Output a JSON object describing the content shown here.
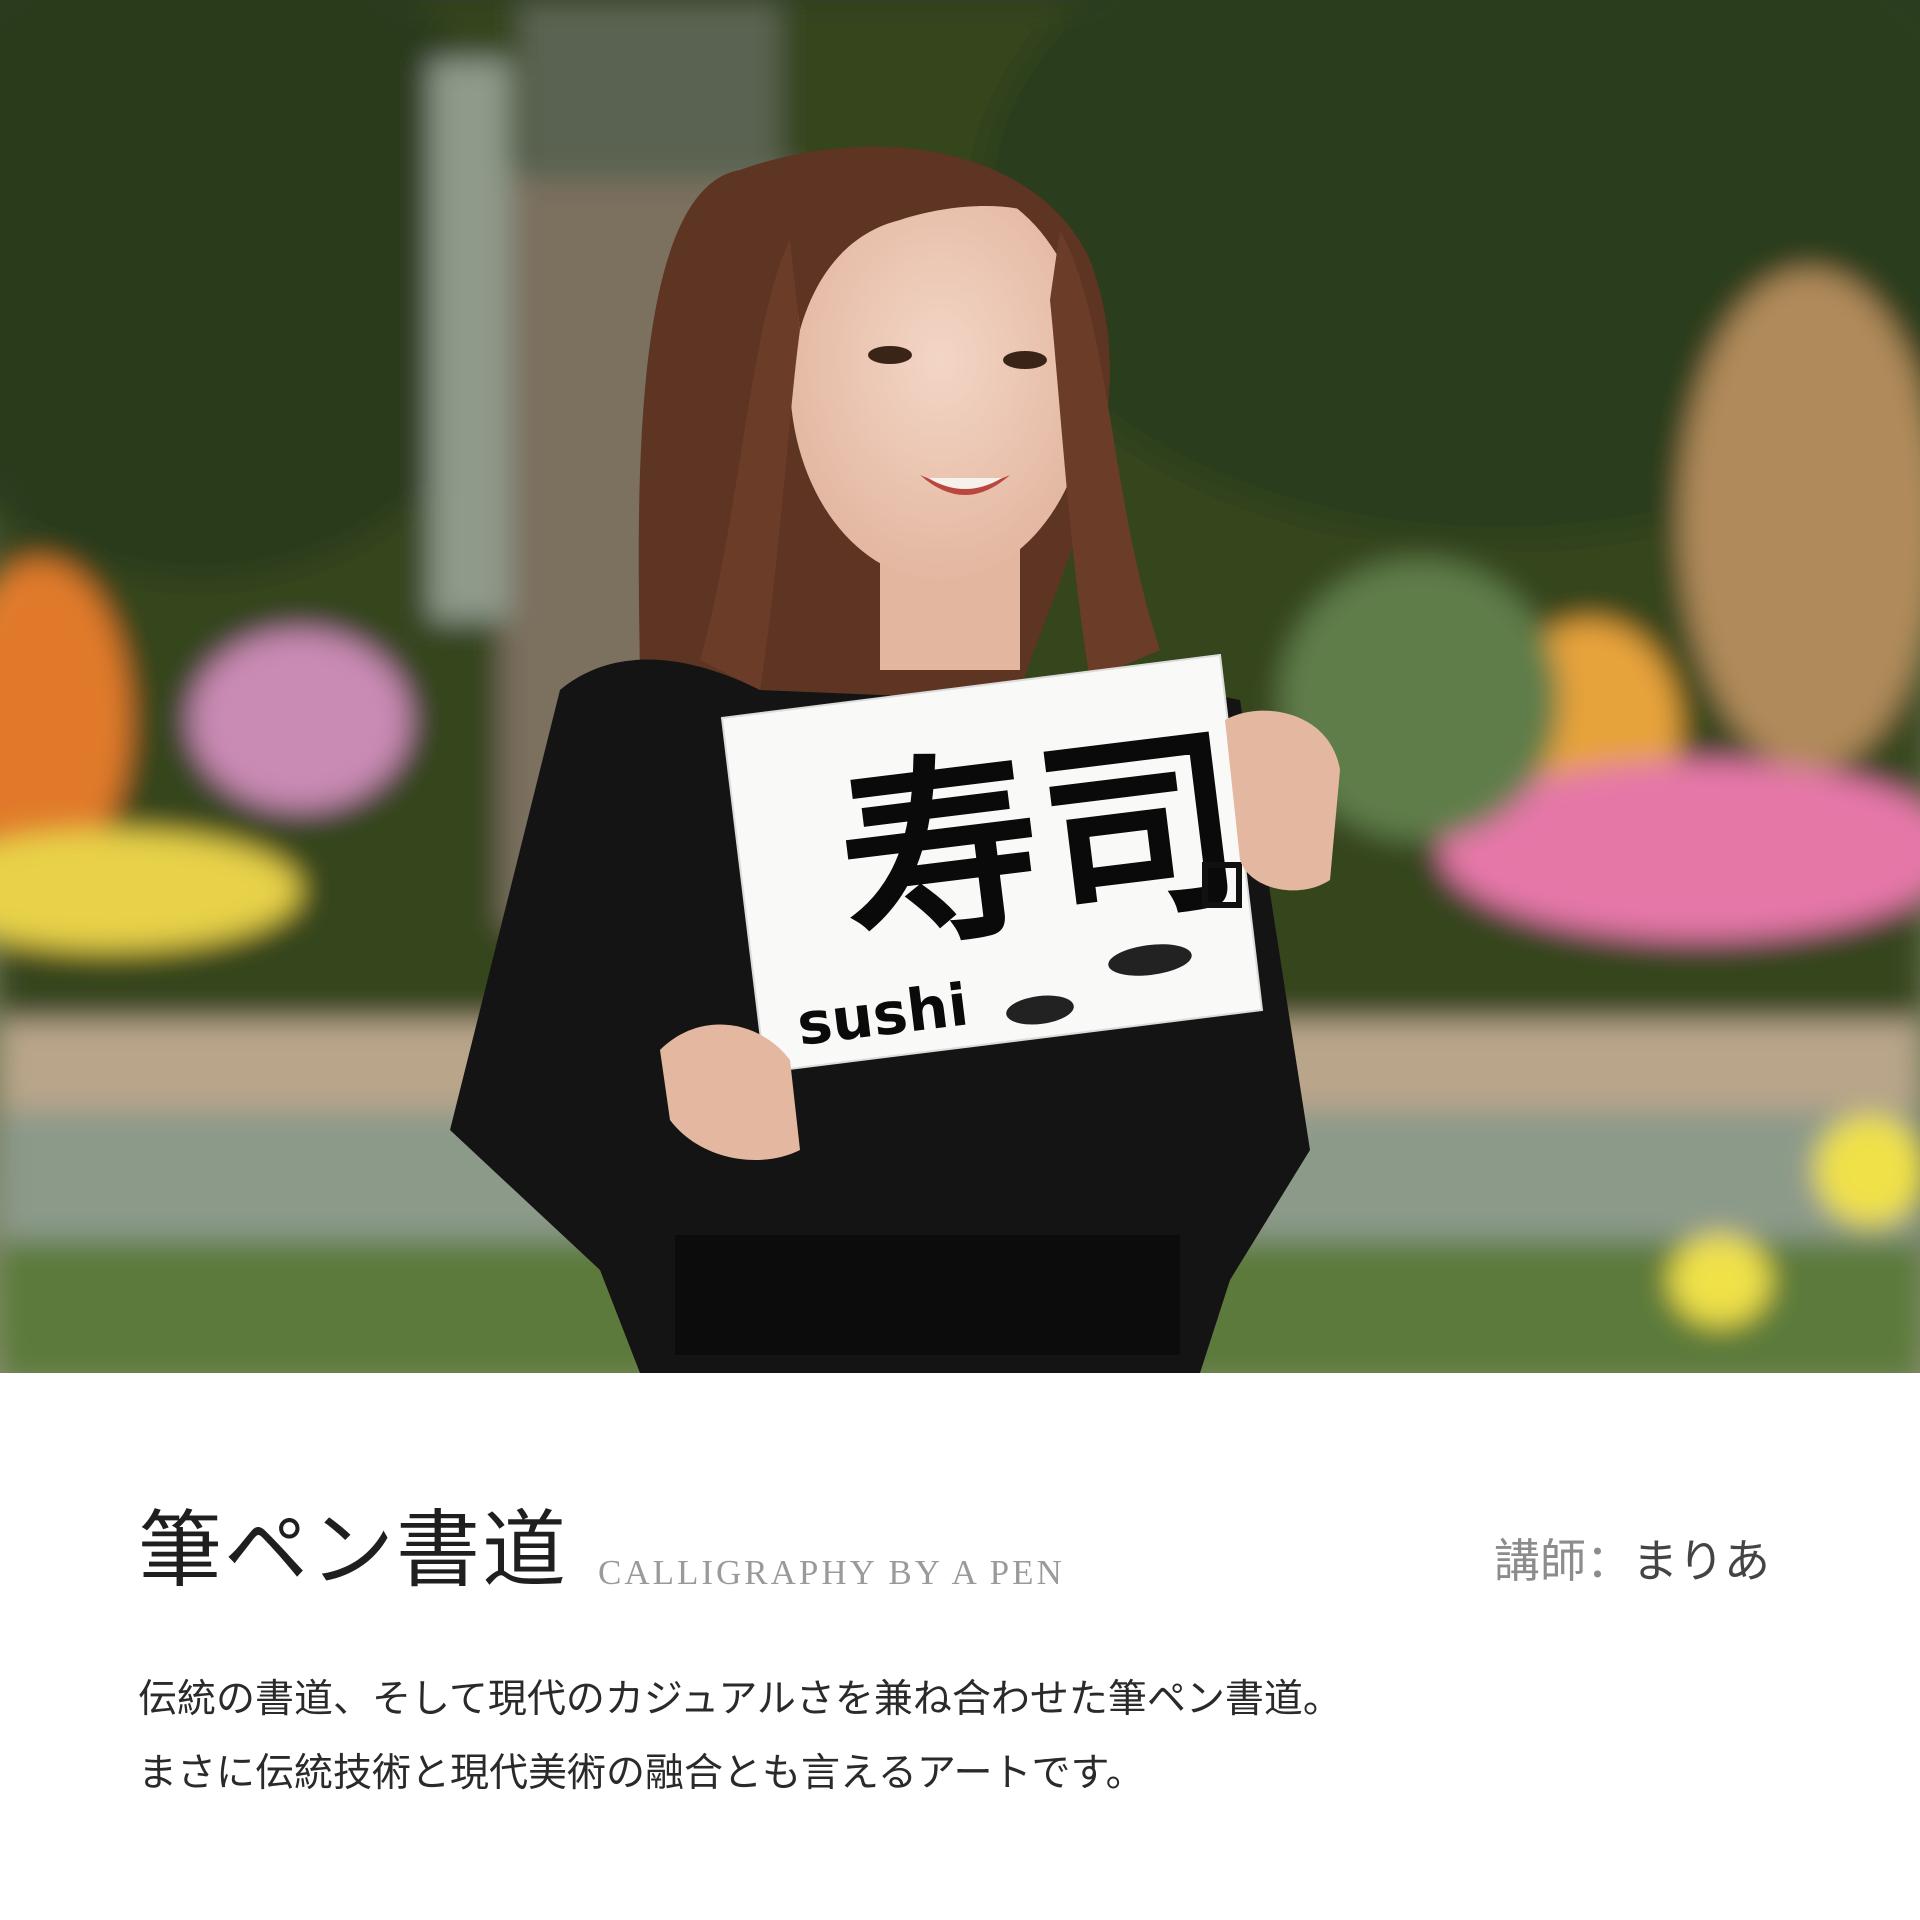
{
  "photo": {
    "sign_text": "寿司",
    "sign_subtext": "sushi"
  },
  "caption": {
    "title": "筆ペン書道",
    "subtitle": "CALLIGRAPHY BY A PEN",
    "instructor_label": "講師：",
    "instructor_name": "まりあ",
    "description_lines": [
      "伝統の書道、そして現代のカジュアルさを兼ね合わせた筆ペン書道。",
      "まさに伝統技術と現代美術の融合とも言えるアートです。"
    ]
  }
}
